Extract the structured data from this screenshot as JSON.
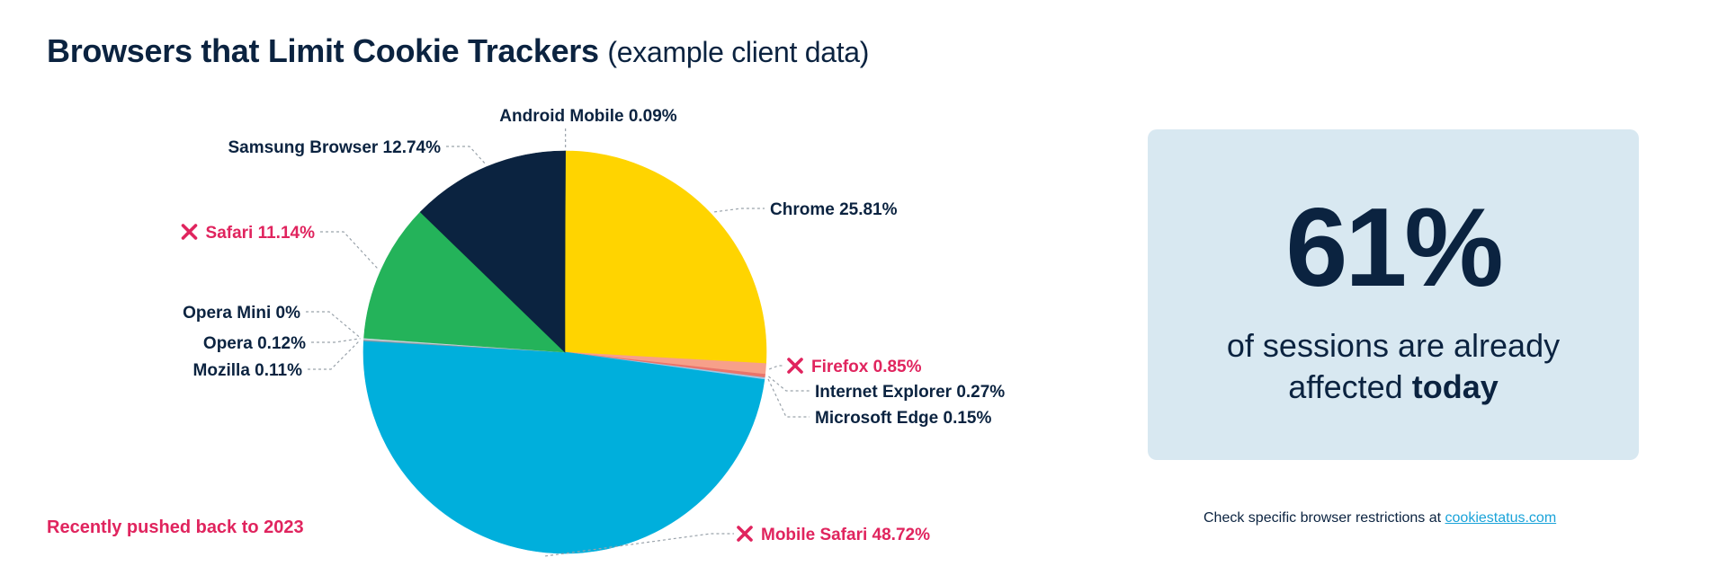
{
  "header": {
    "title": "Browsers that Limit Cookie Trackers",
    "subtitle": "(example client data)"
  },
  "note": "Recently pushed back to 2023",
  "stat": {
    "value": "61%",
    "line1": "of sessions are already",
    "line2_prefix": "affected ",
    "line2_bold": "today"
  },
  "footer": {
    "text": "Check specific browser restrictions at ",
    "link": "cookiestatus.com"
  },
  "colors": {
    "limit_marker": "#e0245e",
    "dark_text": "#0b2340"
  },
  "chart_data": {
    "type": "pie",
    "slices": [
      {
        "label": "Android Mobile 0.09%",
        "name": "Android Mobile",
        "value": 0.09,
        "color": "#0b2340",
        "limited": false
      },
      {
        "label": "Chrome 25.81%",
        "name": "Chrome",
        "value": 25.81,
        "color": "#ffd400",
        "limited": false
      },
      {
        "label": "Firefox 0.85%",
        "name": "Firefox",
        "value": 0.85,
        "color": "#f7a08a",
        "limited": true
      },
      {
        "label": "Internet Explorer 0.27%",
        "name": "Internet Explorer",
        "value": 0.27,
        "color": "#e9746b",
        "limited": false
      },
      {
        "label": "Microsoft Edge 0.15%",
        "name": "Microsoft Edge",
        "value": 0.15,
        "color": "#9cc7e6",
        "limited": false
      },
      {
        "label": "Mobile Safari 48.72%",
        "name": "Mobile Safari",
        "value": 48.72,
        "color": "#00afdc",
        "limited": true
      },
      {
        "label": "Mozilla 0.11%",
        "name": "Mozilla",
        "value": 0.11,
        "color": "#8a9aa6",
        "limited": false
      },
      {
        "label": "Opera 0.12%",
        "name": "Opera",
        "value": 0.12,
        "color": "#c9d3d9",
        "limited": false
      },
      {
        "label": "Opera Mini 0%",
        "name": "Opera Mini",
        "value": 0,
        "color": "#e4e4e4",
        "limited": false
      },
      {
        "label": "Safari 11.14%",
        "name": "Safari",
        "value": 11.14,
        "color": "#24b35a",
        "limited": true
      },
      {
        "label": "Samsung Browser 12.74%",
        "name": "Samsung Browser",
        "value": 12.74,
        "color": "#0b2340",
        "limited": false
      }
    ]
  }
}
